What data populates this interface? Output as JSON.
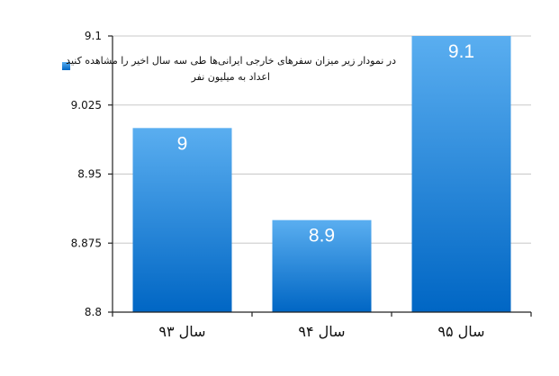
{
  "chart_data": {
    "type": "bar",
    "categories": [
      "سال ۹۳",
      "سال ۹۴",
      "سال ۹۵"
    ],
    "values": [
      9,
      8.9,
      9.1
    ],
    "data_labels": [
      "9",
      "8.9",
      "9.1"
    ],
    "ylim": [
      8.8,
      9.1
    ],
    "yticks": [
      "8.8",
      "8.875",
      "8.95",
      "9.025",
      "9.1"
    ],
    "grid": true,
    "legend": {
      "position": "top-left",
      "lines": [
        "در نمودار زیر میزان سفرهای خارجی ایرانی‌ها طی سه سال اخیر را مشاهده کنید",
        "اعداد به میلیون نفر"
      ]
    },
    "colors": {
      "bar_top": "#5aaef0",
      "bar_bottom": "#0066c4",
      "grid": "#c8c8c8"
    }
  }
}
